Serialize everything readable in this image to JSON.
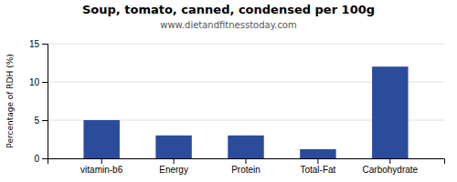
{
  "chart_data": {
    "type": "bar",
    "title": "Soup, tomato, canned, condensed per 100g",
    "subtitle": "www.dietandfitnesstoday.com",
    "ylabel": "Percentage of RDH (%)",
    "categories": [
      "vitamin-b6",
      "Energy",
      "Protein",
      "Total-Fat",
      "Carbohydrate"
    ],
    "values": [
      5,
      3,
      3,
      1.2,
      12
    ],
    "color": "#2b4b9b",
    "ylim": [
      0,
      15
    ],
    "yticks": [
      0,
      5,
      10,
      15
    ],
    "grid": true
  }
}
